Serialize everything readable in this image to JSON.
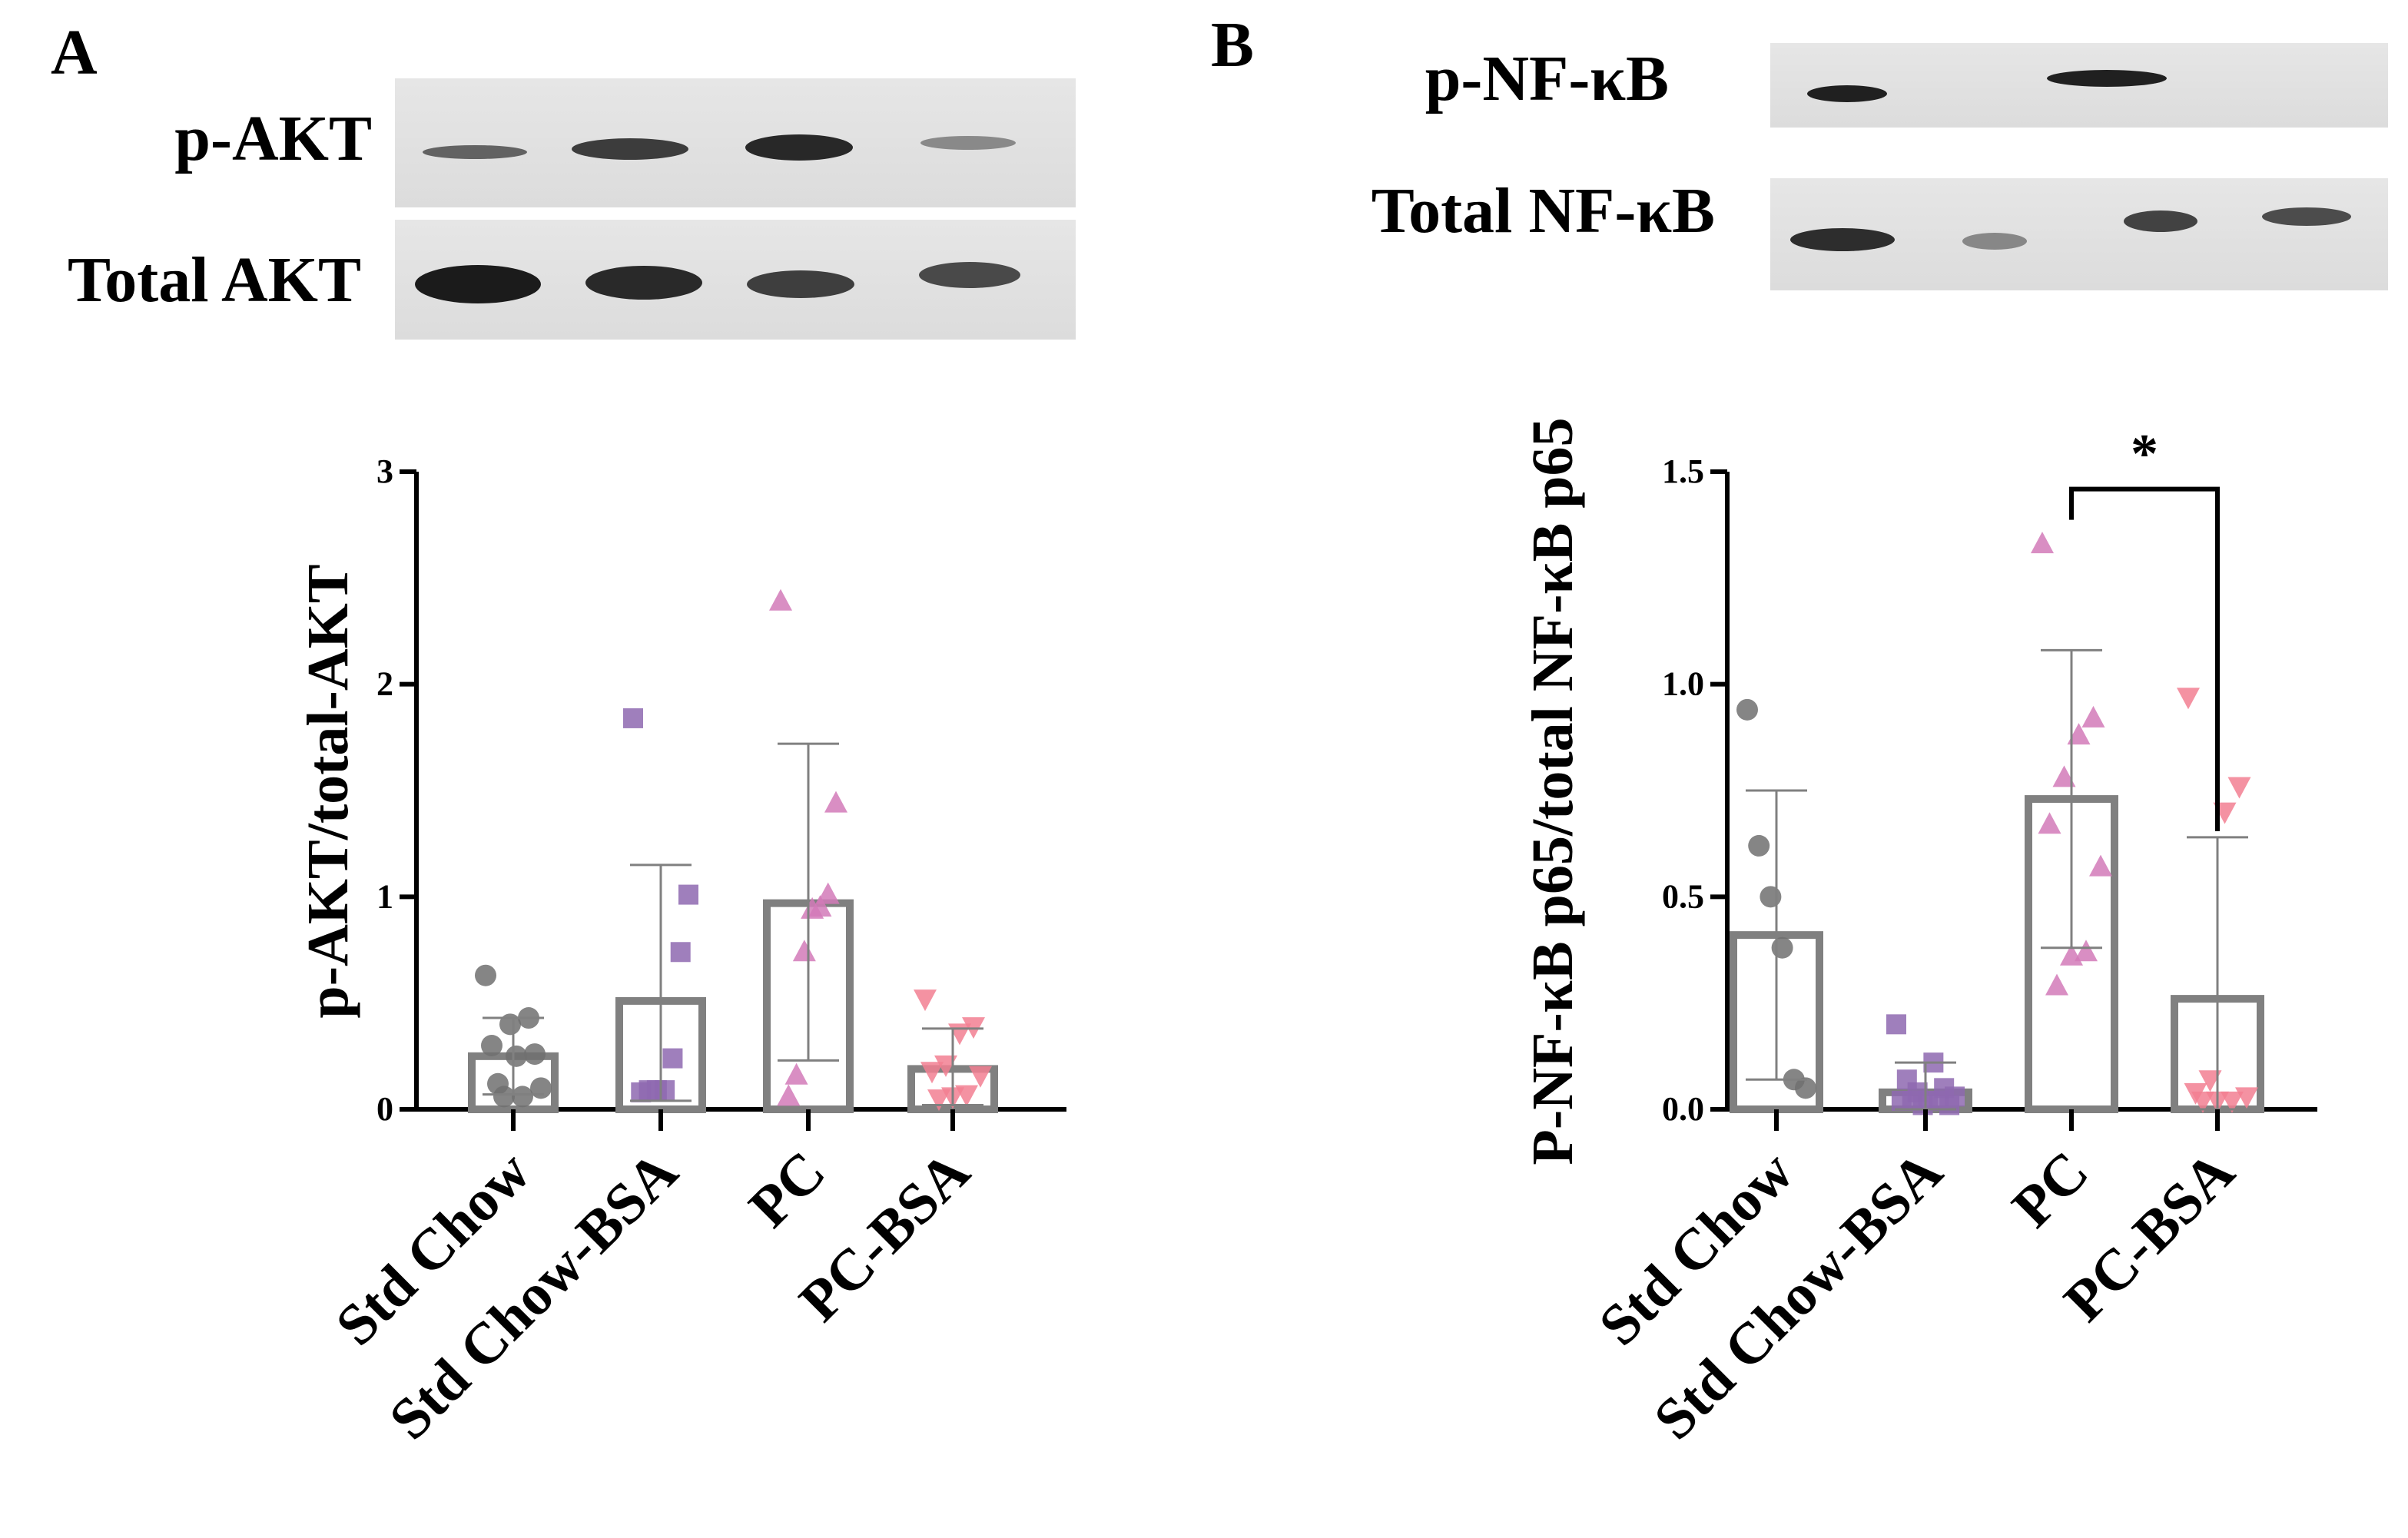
{
  "panels": {
    "a": {
      "letter": "A",
      "blot": {
        "row1_label": "p-AKT",
        "row2_label": "Total AKT"
      }
    },
    "b": {
      "letter": "B",
      "blot": {
        "row1_label": "p-NF-κB",
        "row2_label": "Total NF-κB"
      }
    }
  },
  "colors": {
    "Std Chow": "#707070",
    "Std Chow-BSA": "#8e68b0",
    "PC": "#d27ab8",
    "PC-BSA": "#f27f92",
    "bar_stroke": "#808080",
    "axis": "#000000"
  },
  "chart_data": [
    {
      "type": "bar",
      "title": "",
      "ylabel": "p-AKT/total-AKT",
      "xlabel": "",
      "ylim": [
        0,
        3
      ],
      "yticks": [
        0,
        1,
        2,
        3
      ],
      "ytick_labels": [
        "0",
        "1",
        "2",
        "3"
      ],
      "categories": [
        "Std Chow",
        "Std Chow-BSA",
        "PC",
        "PC-BSA"
      ],
      "values": [
        0.25,
        0.51,
        0.97,
        0.19
      ],
      "error_low": [
        0.07,
        0.04,
        0.23,
        0.02
      ],
      "error_high": [
        0.43,
        1.15,
        1.72,
        0.38
      ],
      "markers": [
        "circle",
        "square",
        "triangle-up",
        "triangle-down"
      ],
      "points": [
        [
          0.63,
          0.43,
          0.4,
          0.3,
          0.26,
          0.25,
          0.12,
          0.1,
          0.06,
          0.06
        ],
        [
          1.84,
          1.01,
          0.74,
          0.24,
          0.09,
          0.09,
          0.09,
          0.08
        ],
        [
          2.39,
          1.44,
          1.01,
          0.95,
          0.94,
          0.74,
          0.16,
          0.06
        ],
        [
          0.52,
          0.39,
          0.36,
          0.21,
          0.18,
          0.16,
          0.07,
          0.06,
          0.05
        ]
      ],
      "significance": []
    },
    {
      "type": "bar",
      "title": "",
      "ylabel": "P-NF-κB p65/total NF-κB p65",
      "xlabel": "",
      "ylim": [
        0,
        1.5
      ],
      "yticks": [
        0,
        0.5,
        1.0,
        1.5
      ],
      "ytick_labels": [
        "0.0",
        "0.5",
        "1.0",
        "1.5"
      ],
      "categories": [
        "Std Chow",
        "Std Chow-BSA",
        "PC",
        "PC-BSA"
      ],
      "values": [
        0.41,
        0.04,
        0.73,
        0.26
      ],
      "error_low": [
        0.07,
        0.0,
        0.38,
        0.0
      ],
      "error_high": [
        0.75,
        0.11,
        1.08,
        0.64
      ],
      "markers": [
        "circle",
        "square",
        "triangle-up",
        "triangle-down"
      ],
      "points": [
        [
          0.94,
          0.62,
          0.5,
          0.38,
          0.07,
          0.05
        ],
        [
          0.2,
          0.11,
          0.07,
          0.05,
          0.04,
          0.03,
          0.02,
          0.02,
          0.02,
          0.02,
          0.01,
          0.01
        ],
        [
          1.33,
          0.92,
          0.88,
          0.78,
          0.67,
          0.57,
          0.37,
          0.36,
          0.29
        ],
        [
          0.97,
          0.76,
          0.7,
          0.07,
          0.04,
          0.03,
          0.02,
          0.02,
          0.02
        ]
      ],
      "significance": [
        {
          "from": 2,
          "to": 3,
          "label": "*"
        }
      ]
    }
  ]
}
